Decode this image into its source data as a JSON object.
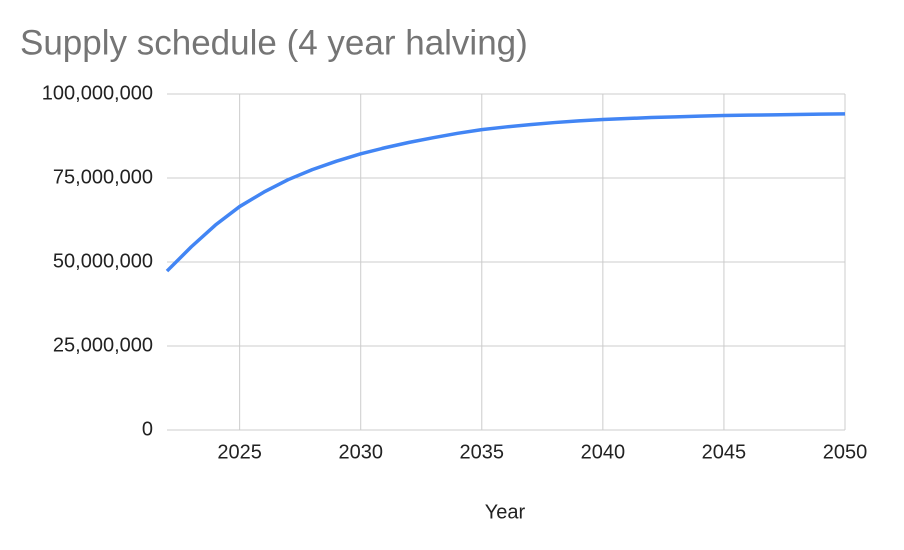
{
  "chart_data": {
    "type": "line",
    "title": "Supply schedule (4 year halving)",
    "x_label": "Year",
    "x": [
      2022,
      2023,
      2024,
      2025,
      2026,
      2027,
      2028,
      2029,
      2030,
      2031,
      2032,
      2033,
      2034,
      2035,
      2036,
      2037,
      2038,
      2039,
      2040,
      2041,
      2042,
      2043,
      2044,
      2045,
      2046,
      2047,
      2048,
      2049,
      2050
    ],
    "series": [
      {
        "color": "#4285f4",
        "values": [
          47300000,
          54500000,
          61000000,
          66500000,
          70800000,
          74500000,
          77500000,
          80000000,
          82200000,
          84000000,
          85600000,
          87000000,
          88300000,
          89400000,
          90200000,
          90900000,
          91500000,
          92000000,
          92400000,
          92700000,
          93000000,
          93200000,
          93400000,
          93600000,
          93700000,
          93800000,
          93900000,
          94000000,
          94100000
        ]
      }
    ],
    "xlim": [
      2022,
      2050
    ],
    "xticks": [
      2025,
      2030,
      2035,
      2040,
      2045,
      2050
    ],
    "ylim": [
      0,
      100000000
    ],
    "yticks": [
      0,
      {
        "value": 25000000,
        "label": "25,000,000"
      },
      {
        "value": 50000000,
        "label": "50,000,000"
      },
      {
        "value": 75000000,
        "label": "75,000,000"
      },
      {
        "value": 100000000,
        "label": "100,000,000"
      }
    ],
    "grid": true
  }
}
